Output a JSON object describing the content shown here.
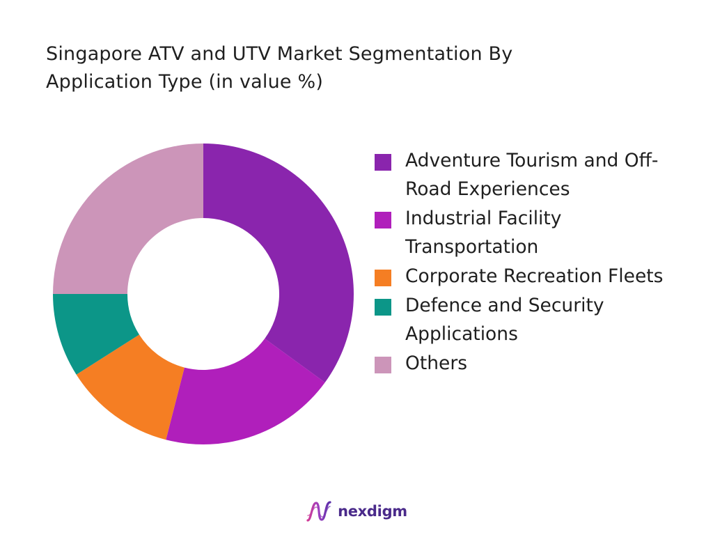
{
  "chart_data": {
    "type": "pie",
    "title": "Singapore ATV and UTV Market Segmentation By Application Type (in value %)",
    "title_lines": [
      "Singapore ATV and UTV Market Segmentation By",
      "Application Type (in value %)"
    ],
    "legend_position": "right",
    "donut": true,
    "categories": [
      "Adventure Tourism and Off-Road Experiences",
      "Industrial Facility Transportation",
      "Corporate Recreation Fleets",
      "Defence and Security Applications",
      "Others"
    ],
    "legend_lines": [
      [
        "Adventure Tourism and Off-",
        "Road Experiences"
      ],
      [
        "Industrial Facility",
        "Transportation"
      ],
      [
        "Corporate Recreation Fleets"
      ],
      [
        "Defence and Security",
        "Applications"
      ],
      [
        "Others"
      ]
    ],
    "values": [
      35,
      19,
      12,
      9,
      25
    ],
    "colors": [
      "#8a25ad",
      "#b01fbb",
      "#f57e23",
      "#0c9688",
      "#cc95b9"
    ]
  },
  "footer": {
    "brand": "nexdigm",
    "logo_icon": "nexdigm-wave-icon"
  }
}
